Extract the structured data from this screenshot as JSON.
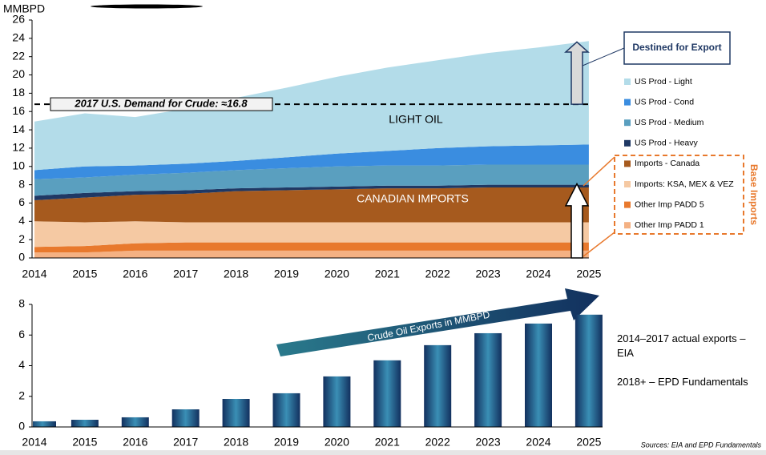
{
  "chart_data": [
    {
      "type": "area",
      "y_label": "MMBPD",
      "categories": [
        "2014",
        "2015",
        "2016",
        "2017",
        "2018",
        "2019",
        "2020",
        "2021",
        "2022",
        "2023",
        "2024",
        "2025"
      ],
      "ylim": [
        0,
        26
      ],
      "yticks": [
        0,
        2,
        4,
        6,
        8,
        10,
        12,
        14,
        16,
        18,
        20,
        22,
        24,
        26
      ],
      "stacked": true,
      "series": [
        {
          "name": "US Prod - Light",
          "color": "#b3dce9",
          "values": [
            5.3,
            5.8,
            5.3,
            6.0,
            6.9,
            7.6,
            8.4,
            9.1,
            9.6,
            10.2,
            10.7,
            11.3
          ]
        },
        {
          "name": "US Prod - Cond",
          "color": "#3a8de0",
          "values": [
            1.0,
            1.2,
            1.0,
            1.0,
            1.0,
            1.2,
            1.4,
            1.6,
            1.9,
            2.0,
            2.1,
            2.2
          ]
        },
        {
          "name": "US Prod - Medium",
          "color": "#5a9fbf",
          "values": [
            1.8,
            1.7,
            1.8,
            1.9,
            2.0,
            2.1,
            2.2,
            2.2,
            2.2,
            2.2,
            2.2,
            2.2
          ]
        },
        {
          "name": "US Prod - Heavy",
          "color": "#1f3864",
          "values": [
            0.5,
            0.5,
            0.4,
            0.4,
            0.3,
            0.3,
            0.3,
            0.3,
            0.3,
            0.3,
            0.3,
            0.3
          ]
        },
        {
          "name": "Imports - Canada",
          "color": "#a65a1e",
          "values": [
            2.3,
            2.7,
            2.9,
            3.1,
            3.4,
            3.5,
            3.6,
            3.7,
            3.7,
            3.8,
            3.8,
            3.8
          ]
        },
        {
          "name": "Imports: KSA, MEX & VEZ",
          "color": "#f5c9a3",
          "values": [
            2.8,
            2.6,
            2.4,
            2.2,
            2.2,
            2.2,
            2.2,
            2.2,
            2.2,
            2.2,
            2.2,
            2.2
          ]
        },
        {
          "name": "Other Imp PADD 5",
          "color": "#e8792d",
          "values": [
            0.6,
            0.7,
            0.8,
            0.9,
            0.9,
            0.9,
            0.9,
            0.9,
            0.9,
            0.9,
            0.9,
            0.9
          ]
        },
        {
          "name": "Other Imp PADD 1",
          "color": "#f4b183",
          "values": [
            0.6,
            0.6,
            0.8,
            0.8,
            0.8,
            0.8,
            0.8,
            0.8,
            0.8,
            0.8,
            0.8,
            0.8
          ]
        }
      ],
      "demand_line": {
        "value": 16.8,
        "label": "2017 U.S. Demand for Crude:  ≈16.8"
      },
      "area_labels": [
        "LIGHT OIL",
        "CANADIAN IMPORTS"
      ],
      "export_callout": "Destined for  Export",
      "imports_group": "Base Imports"
    },
    {
      "type": "bar",
      "categories": [
        "2014",
        "2015",
        "2016",
        "2017",
        "2018",
        "2019",
        "2020",
        "2021",
        "2022",
        "2023",
        "2024",
        "2025"
      ],
      "values": [
        0.37,
        0.47,
        0.63,
        1.15,
        1.83,
        2.2,
        3.3,
        4.35,
        5.34,
        6.12,
        6.75,
        7.33
      ],
      "ylim": [
        0,
        8
      ],
      "yticks": [
        0,
        2,
        4,
        6,
        8
      ],
      "trend_label": "Crude Oil Exports in MMBPD",
      "notes": [
        "2014–2017 actual exports – EIA",
        "2018+ – EPD Fundamentals"
      ],
      "source": "Sources:  EIA and EPD Fundamentals"
    }
  ]
}
